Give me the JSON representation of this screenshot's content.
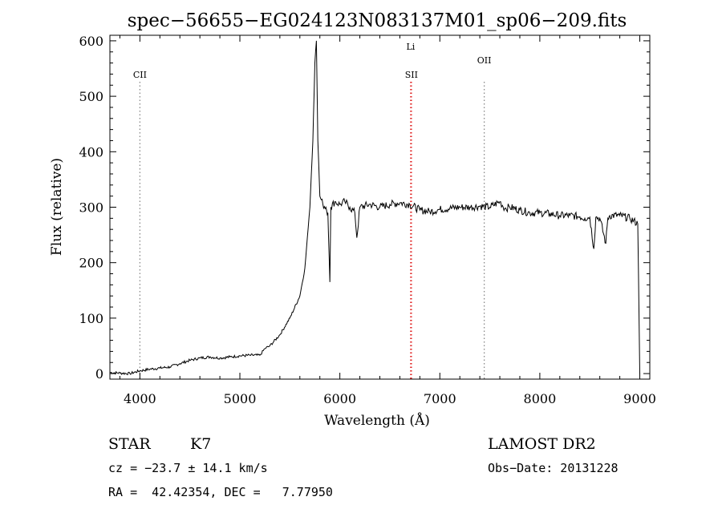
{
  "chart_data": {
    "type": "line",
    "title": "spec−56655−EG024123N083137M01_sp06−209.fits",
    "xlabel": "Wavelength (Å)",
    "ylabel": "Flux (relative)",
    "xlim": [
      3700,
      9100
    ],
    "ylim": [
      -10,
      610
    ],
    "x_ticks": [
      4000,
      5000,
      6000,
      7000,
      8000,
      9000
    ],
    "y_ticks": [
      0,
      100,
      200,
      300,
      400,
      500,
      600
    ],
    "grid": false,
    "series": [
      {
        "points": [
          [
            3700,
            2
          ],
          [
            3800,
            1
          ],
          [
            3900,
            0
          ],
          [
            4000,
            5
          ],
          [
            4100,
            8
          ],
          [
            4200,
            10
          ],
          [
            4300,
            12
          ],
          [
            4400,
            18
          ],
          [
            4500,
            24
          ],
          [
            4600,
            28
          ],
          [
            4700,
            30
          ],
          [
            4800,
            28
          ],
          [
            4900,
            30
          ],
          [
            5000,
            32
          ],
          [
            5100,
            33
          ],
          [
            5200,
            33
          ],
          [
            5250,
            45
          ],
          [
            5300,
            50
          ],
          [
            5400,
            70
          ],
          [
            5500,
            100
          ],
          [
            5600,
            140
          ],
          [
            5650,
            190
          ],
          [
            5700,
            300
          ],
          [
            5730,
            420
          ],
          [
            5750,
            560
          ],
          [
            5765,
            600
          ],
          [
            5780,
            420
          ],
          [
            5800,
            320
          ],
          [
            5830,
            305
          ],
          [
            5860,
            300
          ],
          [
            5880,
            290
          ],
          [
            5900,
            165
          ],
          [
            5910,
            300
          ],
          [
            5950,
            310
          ],
          [
            6000,
            305
          ],
          [
            6050,
            310
          ],
          [
            6100,
            300
          ],
          [
            6150,
            290
          ],
          [
            6170,
            245
          ],
          [
            6200,
            300
          ],
          [
            6300,
            305
          ],
          [
            6400,
            300
          ],
          [
            6500,
            305
          ],
          [
            6600,
            308
          ],
          [
            6700,
            305
          ],
          [
            6800,
            295
          ],
          [
            6900,
            292
          ],
          [
            7000,
            296
          ],
          [
            7100,
            298
          ],
          [
            7200,
            300
          ],
          [
            7300,
            300
          ],
          [
            7400,
            302
          ],
          [
            7500,
            300
          ],
          [
            7600,
            310
          ],
          [
            7650,
            298
          ],
          [
            7700,
            300
          ],
          [
            7800,
            295
          ],
          [
            7900,
            290
          ],
          [
            8000,
            290
          ],
          [
            8100,
            288
          ],
          [
            8200,
            285
          ],
          [
            8300,
            285
          ],
          [
            8400,
            283
          ],
          [
            8450,
            280
          ],
          [
            8500,
            282
          ],
          [
            8540,
            225
          ],
          [
            8560,
            282
          ],
          [
            8600,
            280
          ],
          [
            8660,
            235
          ],
          [
            8680,
            280
          ],
          [
            8700,
            285
          ],
          [
            8800,
            285
          ],
          [
            8900,
            280
          ],
          [
            8980,
            270
          ],
          [
            9000,
            0
          ]
        ]
      }
    ],
    "annotations": [
      {
        "label": "CII",
        "x": 4000,
        "line_color": "#888888",
        "label_level": "low"
      },
      {
        "label": "Li",
        "x": 6708,
        "line_color": "#e02020",
        "label_level": "top"
      },
      {
        "label": "SII",
        "x": 6716,
        "line_color": "#e02020",
        "label_level": "low"
      },
      {
        "label": "OII",
        "x": 7444,
        "line_color": "#888888",
        "label_level": "mid"
      }
    ]
  },
  "info": {
    "object_class": "STAR",
    "subclass": "K7",
    "survey": "LAMOST DR2",
    "cz": "cz = −23.7 ± 14.1 km/s",
    "obs_date": "Obs−Date: 20131228",
    "coords": "RA =  42.42354, DEC =   7.77950"
  }
}
